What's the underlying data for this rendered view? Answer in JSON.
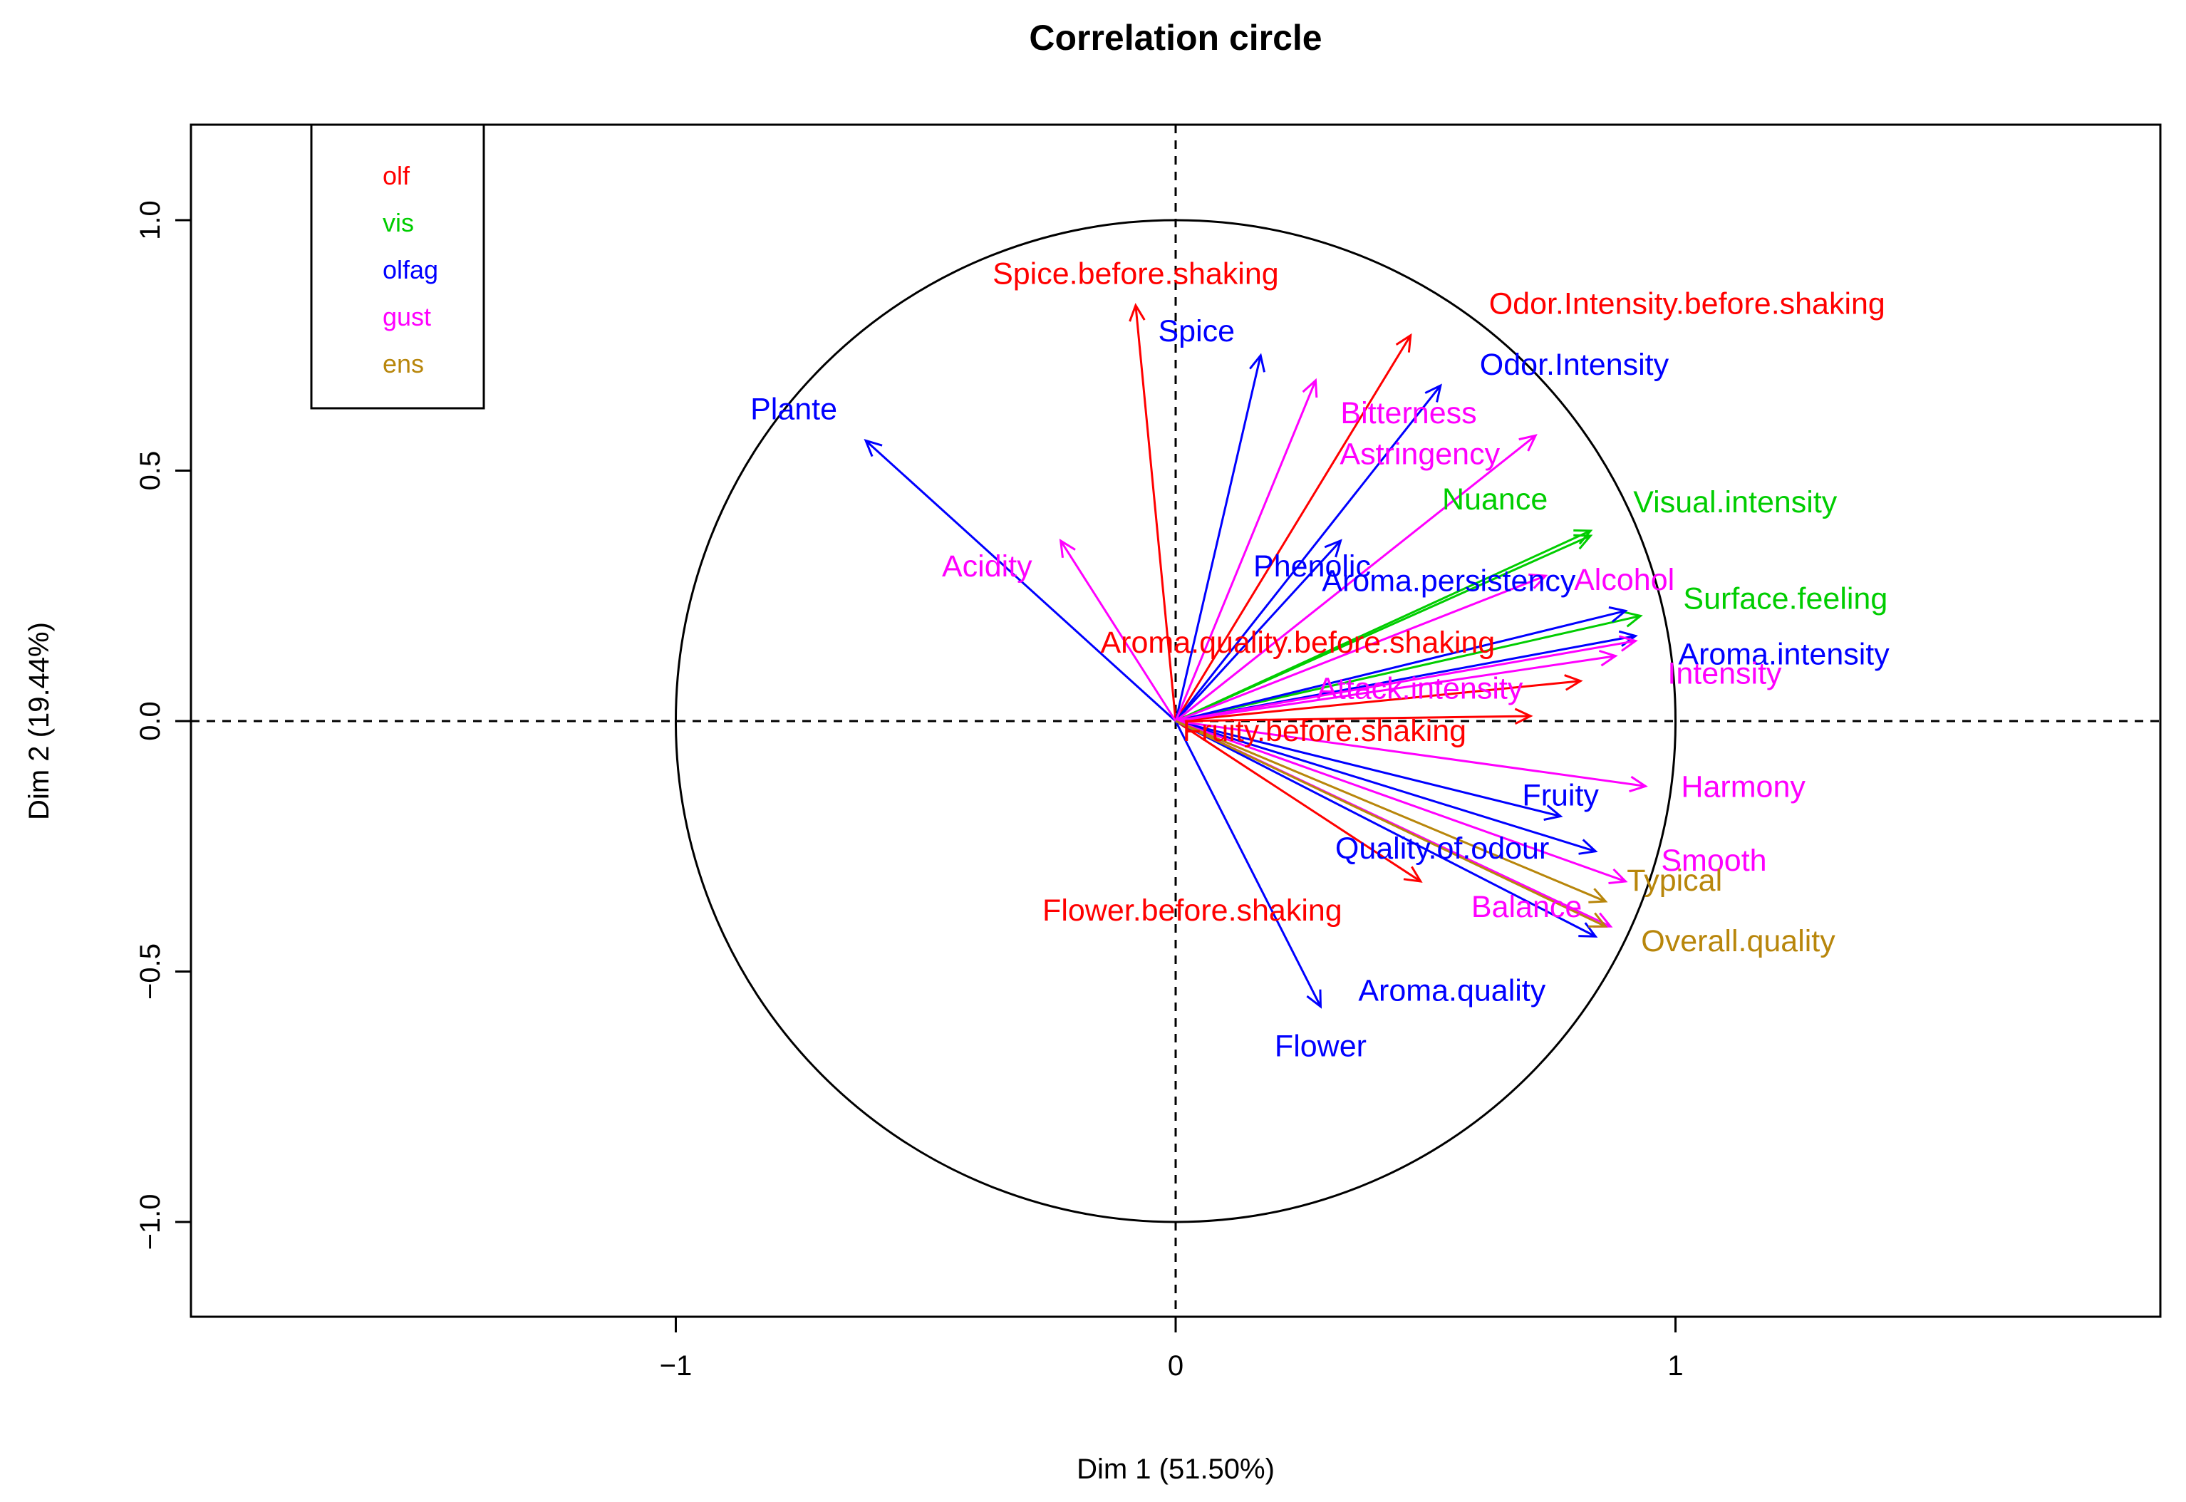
{
  "chart_data": {
    "type": "scatter",
    "subtype": "correlation-circle",
    "title": "Correlation circle",
    "xlabel": "Dim 1 (51.50%)",
    "ylabel": "Dim 2 (19.44%)",
    "xlim": [
      -1.97,
      1.97
    ],
    "ylim": [
      -1.19,
      1.19
    ],
    "xticks": [
      -1,
      0,
      1
    ],
    "xtick_labels": [
      "−1",
      "0",
      "1"
    ],
    "yticks": [
      -1.0,
      -0.5,
      0.0,
      0.5,
      1.0
    ],
    "ytick_labels": [
      "−1.0",
      "−0.5",
      "0.0",
      "0.5",
      "1.0"
    ],
    "unit_circle": true,
    "reference_lines": "dashed x=0 and y=0",
    "legend": {
      "position": "top-left",
      "entries": [
        {
          "label": "olf",
          "color": "#ff0000"
        },
        {
          "label": "vis",
          "color": "#00cd00"
        },
        {
          "label": "olfag",
          "color": "#0000ff"
        },
        {
          "label": "gust",
          "color": "#ff00ff"
        },
        {
          "label": "ens",
          "color": "#b8860b"
        }
      ]
    },
    "group_colors": {
      "olf": "#ff0000",
      "vis": "#00cd00",
      "olfag": "#0000ff",
      "gust": "#ff00ff",
      "ens": "#b8860b"
    },
    "variables": [
      {
        "label": "Spice.before.shaking",
        "group": "olf",
        "x": -0.08,
        "y": 0.83
      },
      {
        "label": "Odor.Intensity.before.shaking",
        "group": "olf",
        "x": 0.47,
        "y": 0.77
      },
      {
        "label": "Aroma.quality.before.shaking",
        "group": "olf",
        "x": 0.81,
        "y": 0.08
      },
      {
        "label": "Fruity.before.shaking",
        "group": "olf",
        "x": 0.71,
        "y": 0.01
      },
      {
        "label": "Flower.before.shaking",
        "group": "olf",
        "x": 0.49,
        "y": -0.32
      },
      {
        "label": "Nuance",
        "group": "vis",
        "x": 0.83,
        "y": 0.38
      },
      {
        "label": "Visual.intensity",
        "group": "vis",
        "x": 0.83,
        "y": 0.37
      },
      {
        "label": "Surface.feeling",
        "group": "vis",
        "x": 0.93,
        "y": 0.21
      },
      {
        "label": "Plante",
        "group": "olfag",
        "x": -0.62,
        "y": 0.56
      },
      {
        "label": "Spice",
        "group": "olfag",
        "x": 0.17,
        "y": 0.73
      },
      {
        "label": "Odor.Intensity",
        "group": "olfag",
        "x": 0.53,
        "y": 0.67
      },
      {
        "label": "Phenolic",
        "group": "olfag",
        "x": 0.33,
        "y": 0.36
      },
      {
        "label": "Aroma.persistency",
        "group": "olfag",
        "x": 0.9,
        "y": 0.22
      },
      {
        "label": "Aroma.intensity",
        "group": "olfag",
        "x": 0.92,
        "y": 0.17
      },
      {
        "label": "Fruity",
        "group": "olfag",
        "x": 0.77,
        "y": -0.19
      },
      {
        "label": "Quality.of.odour",
        "group": "olfag",
        "x": 0.84,
        "y": -0.26
      },
      {
        "label": "Aroma.quality",
        "group": "olfag",
        "x": 0.84,
        "y": -0.43
      },
      {
        "label": "Flower",
        "group": "olfag",
        "x": 0.29,
        "y": -0.57
      },
      {
        "label": "Bitterness",
        "group": "gust",
        "x": 0.28,
        "y": 0.68
      },
      {
        "label": "Astringency",
        "group": "gust",
        "x": 0.72,
        "y": 0.57
      },
      {
        "label": "Acidity",
        "group": "gust",
        "x": -0.23,
        "y": 0.36
      },
      {
        "label": "Alcohol",
        "group": "gust",
        "x": 0.74,
        "y": 0.29
      },
      {
        "label": "Intensity",
        "group": "gust",
        "x": 0.92,
        "y": 0.16
      },
      {
        "label": "Attack.intensity",
        "group": "gust",
        "x": 0.88,
        "y": 0.13
      },
      {
        "label": "Harmony",
        "group": "gust",
        "x": 0.94,
        "y": -0.13
      },
      {
        "label": "Smooth",
        "group": "gust",
        "x": 0.9,
        "y": -0.32
      },
      {
        "label": "Balance",
        "group": "gust",
        "x": 0.87,
        "y": -0.41
      },
      {
        "label": "Typical",
        "group": "ens",
        "x": 0.86,
        "y": -0.36
      },
      {
        "label": "Overall.quality",
        "group": "ens",
        "x": 0.86,
        "y": -0.41
      }
    ]
  }
}
